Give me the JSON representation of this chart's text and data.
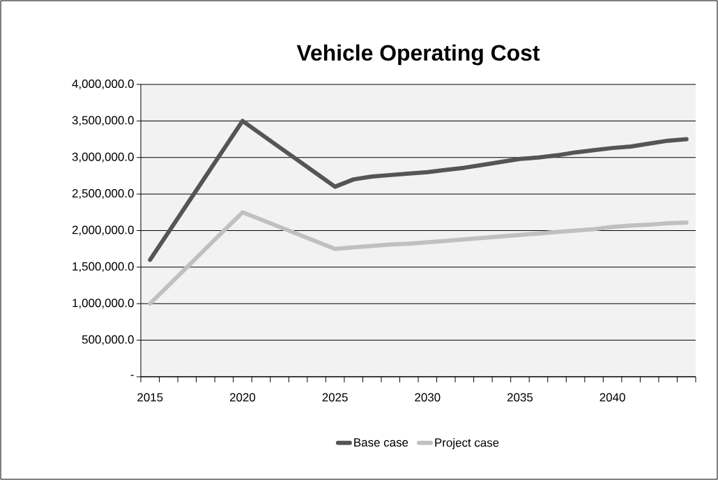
{
  "chart_data": {
    "type": "line",
    "title": "Vehicle Operating Cost",
    "categories": [
      "2015",
      null,
      null,
      null,
      null,
      "2020",
      null,
      null,
      null,
      null,
      "2025",
      null,
      null,
      null,
      null,
      "2030",
      null,
      null,
      null,
      null,
      "2035",
      null,
      null,
      null,
      null,
      "2040",
      null,
      null,
      null,
      null
    ],
    "series": [
      {
        "name": "Base case",
        "color": "#555555",
        "values": [
          1600000,
          1980000,
          2360000,
          2740000,
          3120000,
          3500000,
          3320000,
          3140000,
          2960000,
          2780000,
          2600000,
          2700000,
          2740000,
          2760000,
          2780000,
          2800000,
          2830000,
          2860000,
          2900000,
          2940000,
          2980000,
          3000000,
          3030000,
          3070000,
          3100000,
          3130000,
          3150000,
          3190000,
          3230000,
          3250000
        ]
      },
      {
        "name": "Project case",
        "color": "#c0c0c0",
        "values": [
          1000000,
          1250000,
          1500000,
          1750000,
          2000000,
          2250000,
          2150000,
          2050000,
          1950000,
          1850000,
          1750000,
          1770000,
          1790000,
          1810000,
          1820000,
          1840000,
          1860000,
          1880000,
          1900000,
          1920000,
          1940000,
          1960000,
          1980000,
          2000000,
          2020000,
          2050000,
          2070000,
          2080000,
          2100000,
          2110000
        ]
      }
    ],
    "ylim": [
      0,
      4000000
    ],
    "yticks": [
      {
        "value": 0,
        "label": "-"
      },
      {
        "value": 500000,
        "label": "500,000.0"
      },
      {
        "value": 1000000,
        "label": "1,000,000.0"
      },
      {
        "value": 1500000,
        "label": "1,500,000.0"
      },
      {
        "value": 2000000,
        "label": "2,000,000.0"
      },
      {
        "value": 2500000,
        "label": "2,500,000.0"
      },
      {
        "value": 3000000,
        "label": "3,000,000.0"
      },
      {
        "value": 3500000,
        "label": "3,500,000.0"
      },
      {
        "value": 4000000,
        "label": "4,000,000.0"
      }
    ],
    "grid": "y",
    "legend": "bottom",
    "marker": "none",
    "line_style": "solid"
  }
}
